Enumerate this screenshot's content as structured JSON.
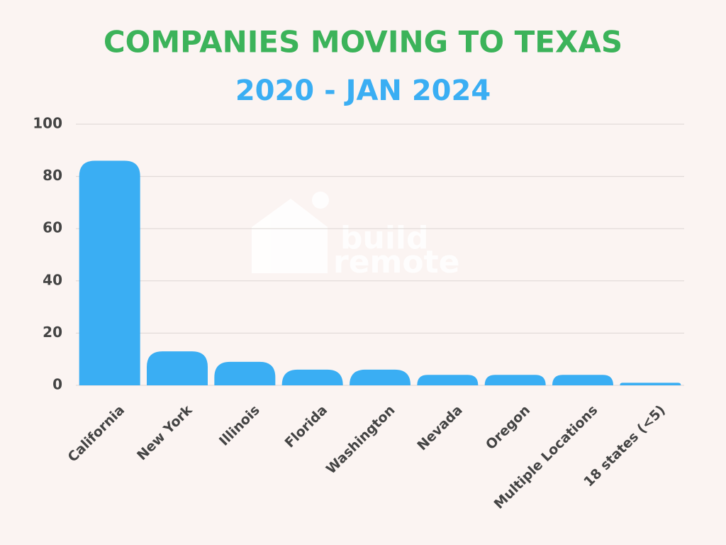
{
  "chart_data": {
    "type": "bar",
    "title": "COMPANIES MOVING TO TEXAS",
    "subtitle": "2020 - JAN 2024",
    "categories": [
      "California",
      "New York",
      "Illinois",
      "Florida",
      "Washington",
      "Nevada",
      "Oregon",
      "Multiple Locations",
      "18 states (<5)"
    ],
    "values": [
      86,
      13,
      9,
      6,
      6,
      4,
      4,
      4,
      1
    ],
    "color": "#3aaef3",
    "ylim": [
      0,
      100
    ],
    "yticks": [
      0,
      20,
      40,
      60,
      80,
      100
    ],
    "grid": true,
    "watermark": [
      "build",
      "remote"
    ]
  }
}
